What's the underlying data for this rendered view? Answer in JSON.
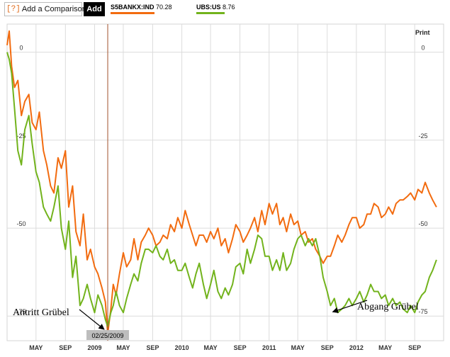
{
  "toolbar": {
    "compare_icon": "[?]",
    "compare_label": "Add a Comparison",
    "add_label": "Add"
  },
  "legend": [
    {
      "ticker": "S5BANKX:IND",
      "value": "70.28",
      "color": "#f26b0f"
    },
    {
      "ticker": "UBS:US",
      "value": "8.76",
      "color": "#72b31c"
    }
  ],
  "print_label": "Print",
  "cursor_date": "02/25/2009",
  "annotations": {
    "entry": "Antritt Grübel",
    "exit": "Abgang Grübel"
  },
  "chart_data": {
    "type": "line",
    "ylim": [
      -82,
      8
    ],
    "yticks": [
      0,
      -25,
      -50,
      -75
    ],
    "ytick_labels": [
      "0",
      "-25",
      "-50",
      "-75"
    ],
    "xlim": [
      "2008-01-01",
      "2012-12-31"
    ],
    "xticks": [
      {
        "date": "2008-05-01",
        "label": "MAY"
      },
      {
        "date": "2008-09-01",
        "label": "SEP"
      },
      {
        "date": "2009-01-01",
        "label": "2009"
      },
      {
        "date": "2009-05-01",
        "label": "MAY"
      },
      {
        "date": "2009-09-01",
        "label": "SEP"
      },
      {
        "date": "2010-01-01",
        "label": "2010"
      },
      {
        "date": "2010-05-01",
        "label": "MAY"
      },
      {
        "date": "2010-09-01",
        "label": "SEP"
      },
      {
        "date": "2011-01-01",
        "label": "2011"
      },
      {
        "date": "2011-05-01",
        "label": "MAY"
      },
      {
        "date": "2011-09-01",
        "label": "SEP"
      },
      {
        "date": "2012-01-01",
        "label": "2012"
      },
      {
        "date": "2012-05-01",
        "label": "MAY"
      },
      {
        "date": "2012-09-01",
        "label": "SEP"
      }
    ],
    "grid": true,
    "marker_date": "2009-02-25",
    "series": [
      {
        "name": "S5BANKX:IND",
        "color": "#f26b0f",
        "x": [
          "2008-01-01",
          "2008-01-10",
          "2008-01-20",
          "2008-02-01",
          "2008-02-15",
          "2008-03-01",
          "2008-03-15",
          "2008-04-01",
          "2008-04-15",
          "2008-05-01",
          "2008-05-15",
          "2008-06-01",
          "2008-06-15",
          "2008-07-01",
          "2008-07-15",
          "2008-08-01",
          "2008-08-15",
          "2008-09-01",
          "2008-09-15",
          "2008-10-01",
          "2008-10-15",
          "2008-11-01",
          "2008-11-15",
          "2008-12-01",
          "2008-12-15",
          "2009-01-01",
          "2009-01-15",
          "2009-02-01",
          "2009-02-15",
          "2009-02-25",
          "2009-03-10",
          "2009-03-20",
          "2009-04-01",
          "2009-04-15",
          "2009-05-01",
          "2009-05-15",
          "2009-06-01",
          "2009-06-15",
          "2009-07-01",
          "2009-07-15",
          "2009-08-01",
          "2009-08-15",
          "2009-09-01",
          "2009-09-15",
          "2009-10-01",
          "2009-10-15",
          "2009-11-01",
          "2009-11-15",
          "2009-12-01",
          "2009-12-15",
          "2010-01-01",
          "2010-01-15",
          "2010-02-01",
          "2010-02-15",
          "2010-03-01",
          "2010-03-15",
          "2010-04-01",
          "2010-04-15",
          "2010-05-01",
          "2010-05-15",
          "2010-06-01",
          "2010-06-15",
          "2010-07-01",
          "2010-07-15",
          "2010-08-01",
          "2010-08-15",
          "2010-09-01",
          "2010-09-15",
          "2010-10-01",
          "2010-10-15",
          "2010-11-01",
          "2010-11-15",
          "2010-12-01",
          "2010-12-15",
          "2011-01-01",
          "2011-01-15",
          "2011-02-01",
          "2011-02-15",
          "2011-03-01",
          "2011-03-15",
          "2011-04-01",
          "2011-04-15",
          "2011-05-01",
          "2011-05-15",
          "2011-06-01",
          "2011-06-15",
          "2011-07-01",
          "2011-07-15",
          "2011-08-01",
          "2011-08-15",
          "2011-09-01",
          "2011-09-15",
          "2011-10-01",
          "2011-10-15",
          "2011-11-01",
          "2011-11-15",
          "2011-12-01",
          "2011-12-15",
          "2012-01-01",
          "2012-01-15",
          "2012-02-01",
          "2012-02-15",
          "2012-03-01",
          "2012-03-15",
          "2012-04-01",
          "2012-04-15",
          "2012-05-01",
          "2012-05-15",
          "2012-06-01",
          "2012-06-15",
          "2012-07-01",
          "2012-07-15",
          "2012-08-01",
          "2012-08-15",
          "2012-09-01",
          "2012-09-15",
          "2012-10-01",
          "2012-10-15",
          "2012-11-01",
          "2012-11-15",
          "2012-12-01"
        ],
        "values": [
          2,
          6,
          -4,
          -10,
          -8,
          -18,
          -14,
          -12,
          -20,
          -22,
          -17,
          -28,
          -32,
          -38,
          -40,
          -30,
          -33,
          -28,
          -44,
          -38,
          -51,
          -55,
          -46,
          -59,
          -56,
          -61,
          -63,
          -67,
          -71,
          -80,
          -73,
          -66,
          -69,
          -63,
          -57,
          -61,
          -59,
          -53,
          -59,
          -54,
          -52,
          -50,
          -52,
          -55,
          -54,
          -52,
          -53,
          -49,
          -51,
          -47,
          -50,
          -45,
          -49,
          -52,
          -55,
          -52,
          -52,
          -54,
          -51,
          -53,
          -50,
          -55,
          -53,
          -57,
          -53,
          -49,
          -51,
          -54,
          -52,
          -50,
          -47,
          -51,
          -45,
          -49,
          -43,
          -46,
          -43,
          -49,
          -47,
          -51,
          -46,
          -49,
          -48,
          -52,
          -51,
          -54,
          -53,
          -56,
          -58,
          -60,
          -58,
          -58,
          -55,
          -52,
          -54,
          -52,
          -49,
          -47,
          -47,
          -50,
          -49,
          -46,
          -46,
          -43,
          -44,
          -47,
          -46,
          -44,
          -46,
          -43,
          -42,
          -42,
          -41,
          -40,
          -42,
          -39,
          -40,
          -37,
          -40,
          -42,
          -44
        ]
      },
      {
        "name": "UBS:US",
        "color": "#72b31c",
        "x": [
          "2008-01-01",
          "2008-01-10",
          "2008-01-20",
          "2008-02-01",
          "2008-02-15",
          "2008-03-01",
          "2008-03-15",
          "2008-04-01",
          "2008-04-15",
          "2008-05-01",
          "2008-05-15",
          "2008-06-01",
          "2008-06-15",
          "2008-07-01",
          "2008-07-15",
          "2008-08-01",
          "2008-08-15",
          "2008-09-01",
          "2008-09-15",
          "2008-10-01",
          "2008-10-15",
          "2008-11-01",
          "2008-11-15",
          "2008-12-01",
          "2008-12-15",
          "2009-01-01",
          "2009-01-15",
          "2009-02-01",
          "2009-02-15",
          "2009-02-25",
          "2009-03-10",
          "2009-03-20",
          "2009-04-01",
          "2009-04-15",
          "2009-05-01",
          "2009-05-15",
          "2009-06-01",
          "2009-06-15",
          "2009-07-01",
          "2009-07-15",
          "2009-08-01",
          "2009-08-15",
          "2009-09-01",
          "2009-09-15",
          "2009-10-01",
          "2009-10-15",
          "2009-11-01",
          "2009-11-15",
          "2009-12-01",
          "2009-12-15",
          "2010-01-01",
          "2010-01-15",
          "2010-02-01",
          "2010-02-15",
          "2010-03-01",
          "2010-03-15",
          "2010-04-01",
          "2010-04-15",
          "2010-05-01",
          "2010-05-15",
          "2010-06-01",
          "2010-06-15",
          "2010-07-01",
          "2010-07-15",
          "2010-08-01",
          "2010-08-15",
          "2010-09-01",
          "2010-09-15",
          "2010-10-01",
          "2010-10-15",
          "2010-11-01",
          "2010-11-15",
          "2010-12-01",
          "2010-12-15",
          "2011-01-01",
          "2011-01-15",
          "2011-02-01",
          "2011-02-15",
          "2011-03-01",
          "2011-03-15",
          "2011-04-01",
          "2011-04-15",
          "2011-05-01",
          "2011-05-15",
          "2011-06-01",
          "2011-06-15",
          "2011-07-01",
          "2011-07-15",
          "2011-08-01",
          "2011-08-15",
          "2011-09-01",
          "2011-09-15",
          "2011-10-01",
          "2011-10-15",
          "2011-11-01",
          "2011-11-15",
          "2011-12-01",
          "2011-12-15",
          "2012-01-01",
          "2012-01-15",
          "2012-02-01",
          "2012-02-15",
          "2012-03-01",
          "2012-03-15",
          "2012-04-01",
          "2012-04-15",
          "2012-05-01",
          "2012-05-15",
          "2012-06-01",
          "2012-06-15",
          "2012-07-01",
          "2012-07-15",
          "2012-08-01",
          "2012-08-15",
          "2012-09-01",
          "2012-09-15",
          "2012-10-01",
          "2012-10-15",
          "2012-11-01",
          "2012-11-15",
          "2012-12-01"
        ],
        "values": [
          0,
          -2,
          -6,
          -16,
          -28,
          -32,
          -22,
          -18,
          -26,
          -34,
          -37,
          -44,
          -46,
          -48,
          -44,
          -38,
          -50,
          -56,
          -48,
          -64,
          -58,
          -72,
          -70,
          -66,
          -70,
          -74,
          -69,
          -72,
          -76,
          -78,
          -74,
          -72,
          -68,
          -72,
          -74,
          -70,
          -66,
          -63,
          -65,
          -60,
          -56,
          -56,
          -57,
          -55,
          -58,
          -59,
          -56,
          -60,
          -59,
          -62,
          -62,
          -60,
          -64,
          -67,
          -63,
          -60,
          -66,
          -70,
          -66,
          -62,
          -68,
          -70,
          -67,
          -69,
          -66,
          -61,
          -60,
          -63,
          -56,
          -60,
          -56,
          -52,
          -53,
          -58,
          -58,
          -62,
          -59,
          -62,
          -57,
          -62,
          -60,
          -56,
          -53,
          -52,
          -55,
          -53,
          -55,
          -53,
          -58,
          -64,
          -68,
          -72,
          -70,
          -74,
          -73,
          -72,
          -70,
          -72,
          -70,
          -68,
          -71,
          -69,
          -66,
          -68,
          -68,
          -70,
          -69,
          -72,
          -70,
          -72,
          -71,
          -73,
          -74,
          -72,
          -74,
          -71,
          -69,
          -68,
          -64,
          -62,
          -59
        ]
      }
    ]
  }
}
